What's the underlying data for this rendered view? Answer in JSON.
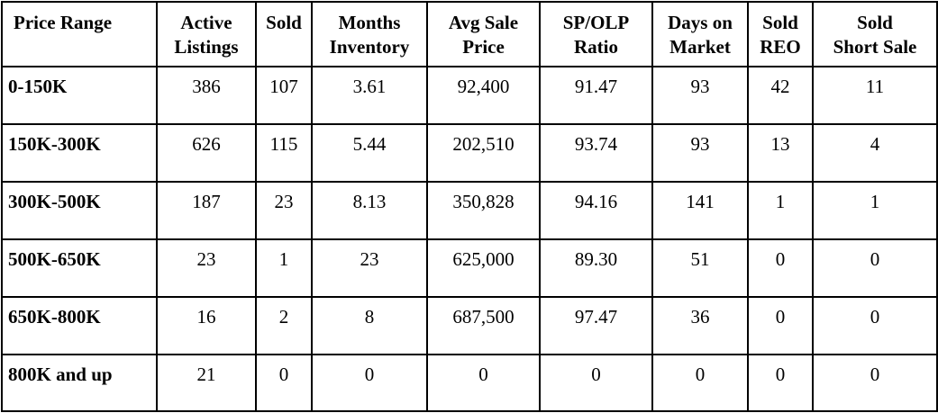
{
  "table": {
    "headers": [
      [
        "Price Range"
      ],
      [
        "Active",
        "Listings"
      ],
      [
        "Sold"
      ],
      [
        "Months",
        "Inventory"
      ],
      [
        "Avg Sale",
        "Price"
      ],
      [
        "SP/OLP",
        "Ratio"
      ],
      [
        "Days on",
        "Market"
      ],
      [
        "Sold",
        "REO"
      ],
      [
        "Sold",
        "Short Sale"
      ]
    ],
    "rows": [
      [
        "0-150K",
        "386",
        "107",
        "3.61",
        "92,400",
        "91.47",
        "93",
        "42",
        "11"
      ],
      [
        "150K-300K",
        "626",
        "115",
        "5.44",
        "202,510",
        "93.74",
        "93",
        "13",
        "4"
      ],
      [
        "300K-500K",
        "187",
        "23",
        "8.13",
        "350,828",
        "94.16",
        "141",
        "1",
        "1"
      ],
      [
        "500K-650K",
        "23",
        "1",
        "23",
        "625,000",
        "89.30",
        "51",
        "0",
        "0"
      ],
      [
        "650K-800K",
        "16",
        "2",
        "8",
        "687,500",
        "97.47",
        "36",
        "0",
        "0"
      ],
      [
        "800K and up",
        "21",
        "0",
        "0",
        "0",
        "0",
        "0",
        "0",
        "0"
      ]
    ]
  }
}
